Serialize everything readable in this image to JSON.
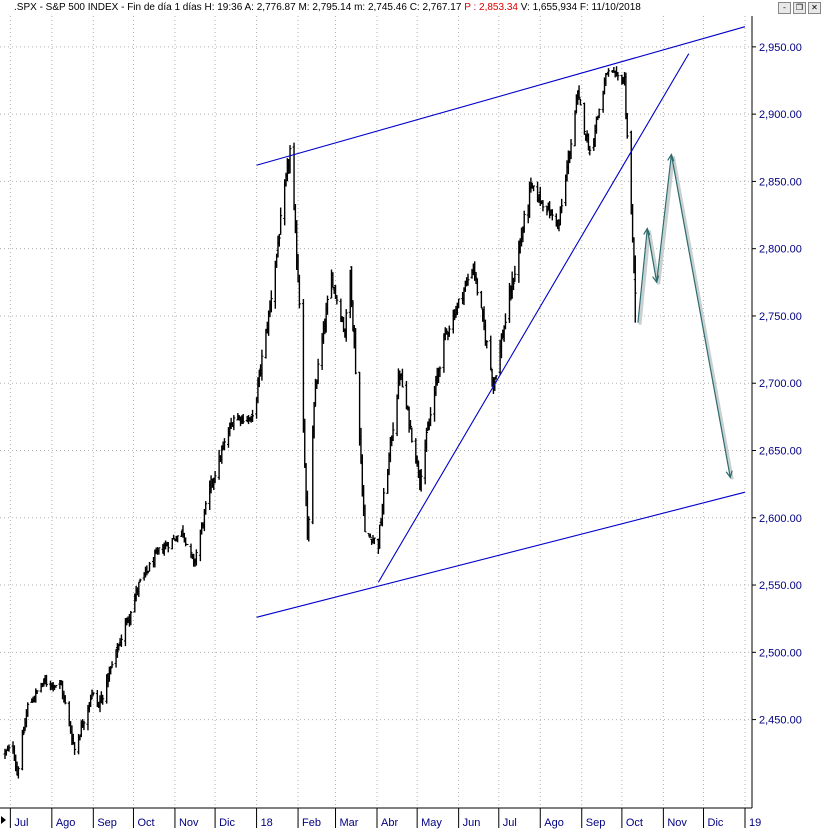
{
  "header": {
    "symbol_text": ".SPX - S&P 500 INDEX - Fin de día 1 días",
    "h_label": "H:",
    "h_value": "19:36",
    "a_label": "A:",
    "a_value": "2,776.87",
    "m_label": "M:",
    "m_value": "2,795.14",
    "min_label": "m:",
    "min_value": "2,745.46",
    "c_label": "C:",
    "c_value": "2,767.17",
    "p_label": "P :",
    "p_value": "2,853.34",
    "v_label": "V:",
    "v_value": "1,655,934",
    "f_label": "F:",
    "f_value": "11/10/2018"
  },
  "window_buttons": [
    {
      "name": "minimize-button",
      "glyph": "-"
    },
    {
      "name": "restore-button",
      "glyph": "❐"
    },
    {
      "name": "close-button",
      "glyph": "✕"
    }
  ],
  "colors": {
    "price": "#000000",
    "channel": "#0000cc",
    "projection": "#2e6b70",
    "grid": "#b0b0b0",
    "axis_text": "#000080",
    "header_p": "#e00000"
  },
  "chart_data": {
    "type": "ohlc",
    "title": ".SPX - S&P 500 INDEX",
    "y_ticks": [
      "2,950.00",
      "2,900.00",
      "2,850.00",
      "2,800.00",
      "2,750.00",
      "2,700.00",
      "2,650.00",
      "2,600.00",
      "2,550.00",
      "2,500.00",
      "2,450.00"
    ],
    "y_tick_values": [
      2950,
      2900,
      2850,
      2800,
      2750,
      2700,
      2650,
      2600,
      2550,
      2500,
      2450
    ],
    "ylim": [
      2388,
      2967
    ],
    "x_ticks": [
      "Jul",
      "Ago",
      "Sep",
      "Oct",
      "Nov",
      "Dic",
      "18",
      "Feb",
      "Mar",
      "Abr",
      "May",
      "Jun",
      "Jul",
      "Ago",
      "Sep",
      "Oct",
      "Nov",
      "Dic",
      "19"
    ],
    "x_tick_dates": [
      "2017-07-01",
      "2017-08-01",
      "2017-09-01",
      "2017-10-01",
      "2017-11-01",
      "2017-12-01",
      "2018-01-01",
      "2018-02-01",
      "2018-03-01",
      "2018-04-01",
      "2018-05-01",
      "2018-06-01",
      "2018-07-01",
      "2018-08-01",
      "2018-09-01",
      "2018-10-01",
      "2018-11-01",
      "2018-12-01",
      "2019-01-01"
    ],
    "xlim": [
      "2017-06-27",
      "2019-01-01"
    ],
    "close_series": [
      {
        "date": "2017-06-27",
        "value": 2425
      },
      {
        "date": "2017-07-03",
        "value": 2430
      },
      {
        "date": "2017-07-06",
        "value": 2410
      },
      {
        "date": "2017-07-14",
        "value": 2460
      },
      {
        "date": "2017-07-26",
        "value": 2478
      },
      {
        "date": "2017-08-08",
        "value": 2475
      },
      {
        "date": "2017-08-18",
        "value": 2428
      },
      {
        "date": "2017-08-31",
        "value": 2470
      },
      {
        "date": "2017-09-05",
        "value": 2460
      },
      {
        "date": "2017-09-20",
        "value": 2505
      },
      {
        "date": "2017-10-05",
        "value": 2550
      },
      {
        "date": "2017-10-20",
        "value": 2575
      },
      {
        "date": "2017-11-07",
        "value": 2590
      },
      {
        "date": "2017-11-15",
        "value": 2565
      },
      {
        "date": "2017-11-28",
        "value": 2625
      },
      {
        "date": "2017-12-15",
        "value": 2675
      },
      {
        "date": "2017-12-29",
        "value": 2673
      },
      {
        "date": "2018-01-10",
        "value": 2750
      },
      {
        "date": "2018-01-26",
        "value": 2873
      },
      {
        "date": "2018-02-02",
        "value": 2762
      },
      {
        "date": "2018-02-08",
        "value": 2581
      },
      {
        "date": "2018-02-14",
        "value": 2698
      },
      {
        "date": "2018-02-26",
        "value": 2779
      },
      {
        "date": "2018-03-08",
        "value": 2738
      },
      {
        "date": "2018-03-12",
        "value": 2783
      },
      {
        "date": "2018-03-23",
        "value": 2588
      },
      {
        "date": "2018-04-02",
        "value": 2582
      },
      {
        "date": "2018-04-18",
        "value": 2708
      },
      {
        "date": "2018-05-03",
        "value": 2630
      },
      {
        "date": "2018-05-21",
        "value": 2733
      },
      {
        "date": "2018-06-12",
        "value": 2787
      },
      {
        "date": "2018-06-27",
        "value": 2700
      },
      {
        "date": "2018-07-25",
        "value": 2846
      },
      {
        "date": "2018-08-15",
        "value": 2818
      },
      {
        "date": "2018-08-29",
        "value": 2914
      },
      {
        "date": "2018-09-07",
        "value": 2872
      },
      {
        "date": "2018-09-20",
        "value": 2931
      },
      {
        "date": "2018-10-03",
        "value": 2925
      },
      {
        "date": "2018-10-10",
        "value": 2785
      },
      {
        "date": "2018-10-11",
        "value": 2767
      }
    ],
    "channel_upper": [
      {
        "date": "2018-01-01",
        "value": 2862
      },
      {
        "date": "2019-01-01",
        "value": 2965
      }
    ],
    "channel_lower": [
      {
        "date": "2018-01-01",
        "value": 2526
      },
      {
        "date": "2019-01-01",
        "value": 2619
      }
    ],
    "trendline": [
      {
        "date": "2018-04-02",
        "value": 2552
      },
      {
        "date": "2018-11-20",
        "value": 2945
      }
    ],
    "projection": [
      {
        "date": "2018-10-13",
        "value": 2745
      },
      {
        "date": "2018-10-20",
        "value": 2815
      },
      {
        "date": "2018-10-27",
        "value": 2775
      },
      {
        "date": "2018-11-07",
        "value": 2870
      },
      {
        "date": "2018-12-21",
        "value": 2630
      }
    ]
  }
}
